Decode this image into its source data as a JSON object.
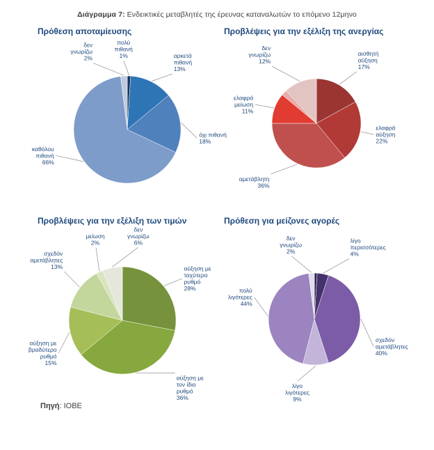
{
  "page": {
    "title_bold": "Διάγραμμα 7:",
    "title_rest": " Ενδεικτικές μεταβλητές της έρευνας καταναλωτών το επόμενο 12μηνο",
    "source_label": "Πηγή",
    "source_rest": ": ΙΟΒΕ",
    "accent_blue": "#1F497D"
  },
  "chart_data": [
    {
      "type": "pie",
      "title": "Πρόθεση αποταμίευσης",
      "slices": [
        {
          "label": "πολύ πιθανή",
          "value": 1,
          "color": "#16365C",
          "label_angle": 357,
          "label_dist": 22
        },
        {
          "label": "αρκετά πιθανή",
          "value": 13,
          "color": "#2E75B6",
          "label_angle": 39,
          "label_dist": 26
        },
        {
          "label": "όχι πιθανή",
          "value": 18,
          "color": "#4F81BD",
          "label_angle": 97,
          "label_dist": 24
        },
        {
          "label": "καθόλου πιθανή",
          "value": 66,
          "color": "#7D9CC9",
          "label_angle": 250,
          "label_dist": 32
        },
        {
          "label": "δεν γνωρίζω",
          "value": 2,
          "color": "#BFCBDD",
          "label_angle": 333,
          "label_dist": 30
        }
      ]
    },
    {
      "type": "pie",
      "title": "Προβλέψεις για την εξέλιξη της ανεργίας",
      "slices": [
        {
          "label": "αισθητή αύξηση",
          "value": 17,
          "color": "#9A3532",
          "label_angle": 38,
          "label_dist": 30
        },
        {
          "label": "ελαφρά αύξηση",
          "value": 22,
          "color": "#B23A36",
          "label_angle": 101,
          "label_dist": 20
        },
        {
          "label": "αμετάβλητη",
          "value": 36,
          "color": "#C0504D",
          "label_angle": 222,
          "label_dist": 34
        },
        {
          "label": "ελαφρά μείωση",
          "value": 11,
          "color": "#E23B31",
          "label_angle": 287,
          "label_dist": 28
        },
        {
          "label": "",
          "value": 2,
          "color": "#E9ACA9"
        },
        {
          "label": "δεν γνωρίζω",
          "value": 12,
          "color": "#E2C4C2",
          "label_angle": 322,
          "label_dist": 40
        }
      ]
    },
    {
      "type": "pie",
      "title": "Προβλέψεις για την εξέλιξη των τιμών",
      "slices": [
        {
          "label": "αύξηση με ταχύτερο ρυθμό",
          "value": 28,
          "color": "#76923C",
          "label_angle": 55,
          "label_dist": 28
        },
        {
          "label": "αύξηση με τον ίδιο ρυθμό",
          "value": 36,
          "color": "#86A83E",
          "label_angle": 135,
          "label_dist": 30
        },
        {
          "label": "αύξηση με βραδύτερο ρυθμό",
          "value": 15,
          "color": "#A5BE57",
          "label_angle": 243,
          "label_dist": 26
        },
        {
          "label": "σχεδόν αμετάβλητες",
          "value": 13,
          "color": "#C3D69B",
          "label_angle": 310,
          "label_dist": 32
        },
        {
          "label": "μείωση",
          "value": 2,
          "color": "#D9E4BE",
          "label_angle": 340,
          "label_dist": 34
        },
        {
          "label": "δεν γνωρίζω",
          "value": 6,
          "color": "#E4E8DC",
          "label_angle": 12,
          "label_dist": 30
        }
      ]
    },
    {
      "type": "pie",
      "title": "Πρόθεση για μείζονες αγορές",
      "slices": [
        {
          "label": "",
          "value": 1,
          "color": "#2E2458"
        },
        {
          "label": "λίγο περισσότερες",
          "value": 4,
          "color": "#43316B",
          "label_angle": 30,
          "label_dist": 34
        },
        {
          "label": "σχεδόν αμετάβλητες",
          "value": 40,
          "color": "#7C5CA6",
          "label_angle": 115,
          "label_dist": 28
        },
        {
          "label": "λίγο λιγότερες",
          "value": 9,
          "color": "#C3B5D9",
          "label_angle": 195,
          "label_dist": 26
        },
        {
          "label": "πολύ λιγότερες",
          "value": 44,
          "color": "#9B84BF",
          "label_angle": 290,
          "label_dist": 26
        },
        {
          "label": "δεν γνωρίζω",
          "value": 2,
          "color": "#E1DBEC",
          "label_angle": 340,
          "label_dist": 30
        }
      ]
    }
  ]
}
